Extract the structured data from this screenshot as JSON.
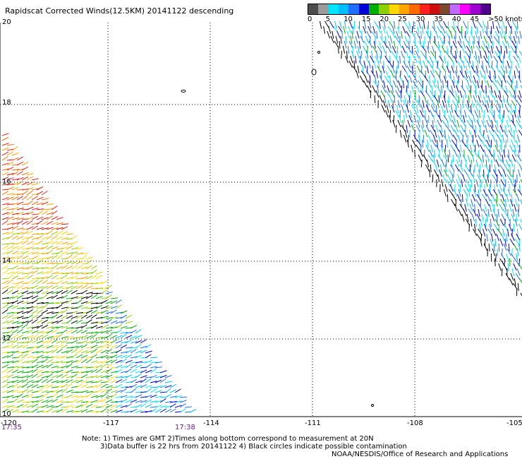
{
  "title": "Rapidscat Corrected Winds(12.5KM) 20141122 descending",
  "legend": {
    "colors": [
      "#4d4d4d",
      "#9b9b9b",
      "#00e5ff",
      "#00bfff",
      "#1e6fff",
      "#0000d9",
      "#00b000",
      "#8fd100",
      "#ffd700",
      "#ffa500",
      "#ff6a00",
      "#ff2020",
      "#cc1010",
      "#7a4a2a",
      "#c06bff",
      "#ff00ff",
      "#a000d0",
      "#50008a"
    ],
    "labels": [
      "0",
      "5",
      "10",
      "15",
      "20",
      "25",
      "30",
      "35",
      "40",
      "45",
      ">50 knots"
    ]
  },
  "axes": {
    "y_labels": [
      "20",
      "18",
      "16",
      "14",
      "12",
      "10"
    ],
    "x_labels": [
      "-120",
      "-117",
      "-114",
      "-111",
      "-108",
      "-105"
    ]
  },
  "times": {
    "left": "17:35",
    "right": "17:38"
  },
  "notes": {
    "line1": "Note: 1) Times are GMT 2)Times along bottom correspond to measurement at 20N",
    "line2": "3)Data buffer is 22 hrs from 20141122 4) Black circles indicate possible contamination",
    "line3": "NOAA/NESDIS/Office of Research and Applications"
  }
}
